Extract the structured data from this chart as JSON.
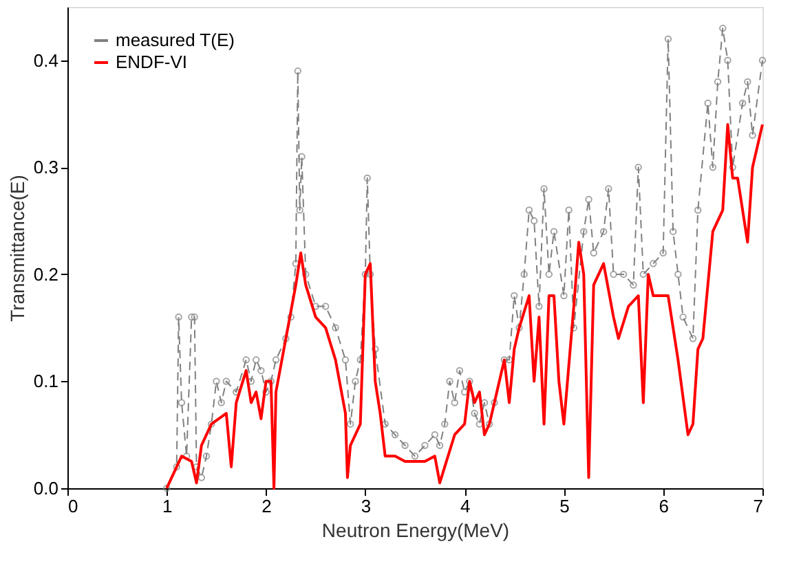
{
  "chart_data": {
    "type": "line",
    "xlabel": "Neutron Energy(MeV)",
    "ylabel": "Transmittance(E)",
    "xlim": [
      0,
      7
    ],
    "ylim": [
      0,
      0.45
    ],
    "xticks": [
      0,
      1,
      2,
      3,
      4,
      5,
      6,
      7
    ],
    "yticks": [
      {
        "value": 0,
        "label": "0.0"
      },
      {
        "value": 0.1,
        "label": "0.1"
      },
      {
        "value": 0.2,
        "label": "0.2"
      },
      {
        "value": 0.3,
        "label": "0.3"
      },
      {
        "value": 0.4,
        "label": "0.4"
      }
    ],
    "grid": false,
    "legend": "top left",
    "series": [
      {
        "name": "measured T(E)",
        "color": "#808080",
        "marker": "circle",
        "line_style": "dashed",
        "x": [
          1.0,
          1.1,
          1.12,
          1.15,
          1.2,
          1.25,
          1.28,
          1.3,
          1.35,
          1.4,
          1.45,
          1.5,
          1.55,
          1.6,
          1.7,
          1.8,
          1.85,
          1.9,
          1.95,
          2.0,
          2.05,
          2.1,
          2.2,
          2.25,
          2.3,
          2.32,
          2.34,
          2.36,
          2.4,
          2.5,
          2.6,
          2.7,
          2.8,
          2.85,
          2.9,
          2.95,
          3.0,
          3.02,
          3.05,
          3.1,
          3.2,
          3.3,
          3.4,
          3.5,
          3.6,
          3.7,
          3.75,
          3.8,
          3.85,
          3.9,
          3.95,
          4.0,
          4.05,
          4.1,
          4.15,
          4.2,
          4.25,
          4.3,
          4.4,
          4.45,
          4.5,
          4.55,
          4.6,
          4.65,
          4.7,
          4.75,
          4.8,
          4.85,
          4.9,
          5.0,
          5.05,
          5.1,
          5.2,
          5.25,
          5.3,
          5.4,
          5.45,
          5.5,
          5.6,
          5.7,
          5.75,
          5.8,
          5.9,
          6.0,
          6.05,
          6.1,
          6.15,
          6.2,
          6.3,
          6.35,
          6.45,
          6.5,
          6.55,
          6.6,
          6.65,
          6.7,
          6.8,
          6.85,
          6.9,
          7.0
        ],
        "values": [
          0.0,
          0.02,
          0.16,
          0.08,
          0.03,
          0.16,
          0.16,
          0.02,
          0.01,
          0.03,
          0.06,
          0.1,
          0.08,
          0.1,
          0.09,
          0.12,
          0.1,
          0.12,
          0.11,
          0.09,
          0.1,
          0.12,
          0.14,
          0.16,
          0.21,
          0.39,
          0.26,
          0.31,
          0.2,
          0.17,
          0.17,
          0.15,
          0.12,
          0.06,
          0.1,
          0.12,
          0.2,
          0.29,
          0.2,
          0.13,
          0.06,
          0.05,
          0.04,
          0.03,
          0.04,
          0.05,
          0.04,
          0.06,
          0.1,
          0.08,
          0.11,
          0.09,
          0.1,
          0.07,
          0.06,
          0.08,
          0.06,
          0.08,
          0.12,
          0.12,
          0.18,
          0.15,
          0.2,
          0.26,
          0.25,
          0.17,
          0.28,
          0.2,
          0.24,
          0.18,
          0.26,
          0.15,
          0.24,
          0.27,
          0.22,
          0.24,
          0.28,
          0.2,
          0.2,
          0.19,
          0.3,
          0.2,
          0.21,
          0.22,
          0.42,
          0.24,
          0.2,
          0.16,
          0.14,
          0.26,
          0.36,
          0.3,
          0.38,
          0.43,
          0.4,
          0.3,
          0.36,
          0.38,
          0.33,
          0.4
        ]
      },
      {
        "name": "ENDF-VI",
        "color": "#ff0000",
        "marker": "none",
        "line_style": "solid",
        "x": [
          1.0,
          1.05,
          1.15,
          1.25,
          1.3,
          1.35,
          1.45,
          1.6,
          1.65,
          1.7,
          1.8,
          1.85,
          1.9,
          1.95,
          2.0,
          2.05,
          2.08,
          2.1,
          2.2,
          2.3,
          2.35,
          2.4,
          2.5,
          2.6,
          2.7,
          2.8,
          2.82,
          2.85,
          2.95,
          3.0,
          3.05,
          3.1,
          3.15,
          3.2,
          3.3,
          3.4,
          3.5,
          3.6,
          3.7,
          3.75,
          3.8,
          3.9,
          4.0,
          4.05,
          4.1,
          4.15,
          4.2,
          4.25,
          4.35,
          4.4,
          4.45,
          4.5,
          4.55,
          4.65,
          4.7,
          4.75,
          4.8,
          4.85,
          4.9,
          4.95,
          5.0,
          5.1,
          5.15,
          5.2,
          5.25,
          5.3,
          5.4,
          5.5,
          5.55,
          5.65,
          5.75,
          5.8,
          5.85,
          5.9,
          5.95,
          6.05,
          6.15,
          6.25,
          6.3,
          6.35,
          6.4,
          6.5,
          6.6,
          6.65,
          6.7,
          6.75,
          6.85,
          6.9,
          7.0
        ],
        "values": [
          0.0,
          0.01,
          0.03,
          0.025,
          0.005,
          0.04,
          0.06,
          0.07,
          0.02,
          0.08,
          0.11,
          0.08,
          0.09,
          0.065,
          0.1,
          0.1,
          0.0,
          0.09,
          0.14,
          0.19,
          0.22,
          0.19,
          0.16,
          0.15,
          0.12,
          0.07,
          0.01,
          0.04,
          0.06,
          0.2,
          0.21,
          0.1,
          0.07,
          0.03,
          0.03,
          0.025,
          0.025,
          0.025,
          0.03,
          0.005,
          0.02,
          0.05,
          0.06,
          0.1,
          0.08,
          0.09,
          0.05,
          0.06,
          0.1,
          0.12,
          0.08,
          0.13,
          0.15,
          0.18,
          0.1,
          0.16,
          0.06,
          0.18,
          0.18,
          0.1,
          0.06,
          0.17,
          0.23,
          0.2,
          0.01,
          0.19,
          0.21,
          0.16,
          0.14,
          0.17,
          0.18,
          0.08,
          0.2,
          0.18,
          0.18,
          0.18,
          0.12,
          0.05,
          0.06,
          0.13,
          0.14,
          0.24,
          0.26,
          0.34,
          0.29,
          0.29,
          0.23,
          0.3,
          0.34
        ]
      }
    ]
  }
}
